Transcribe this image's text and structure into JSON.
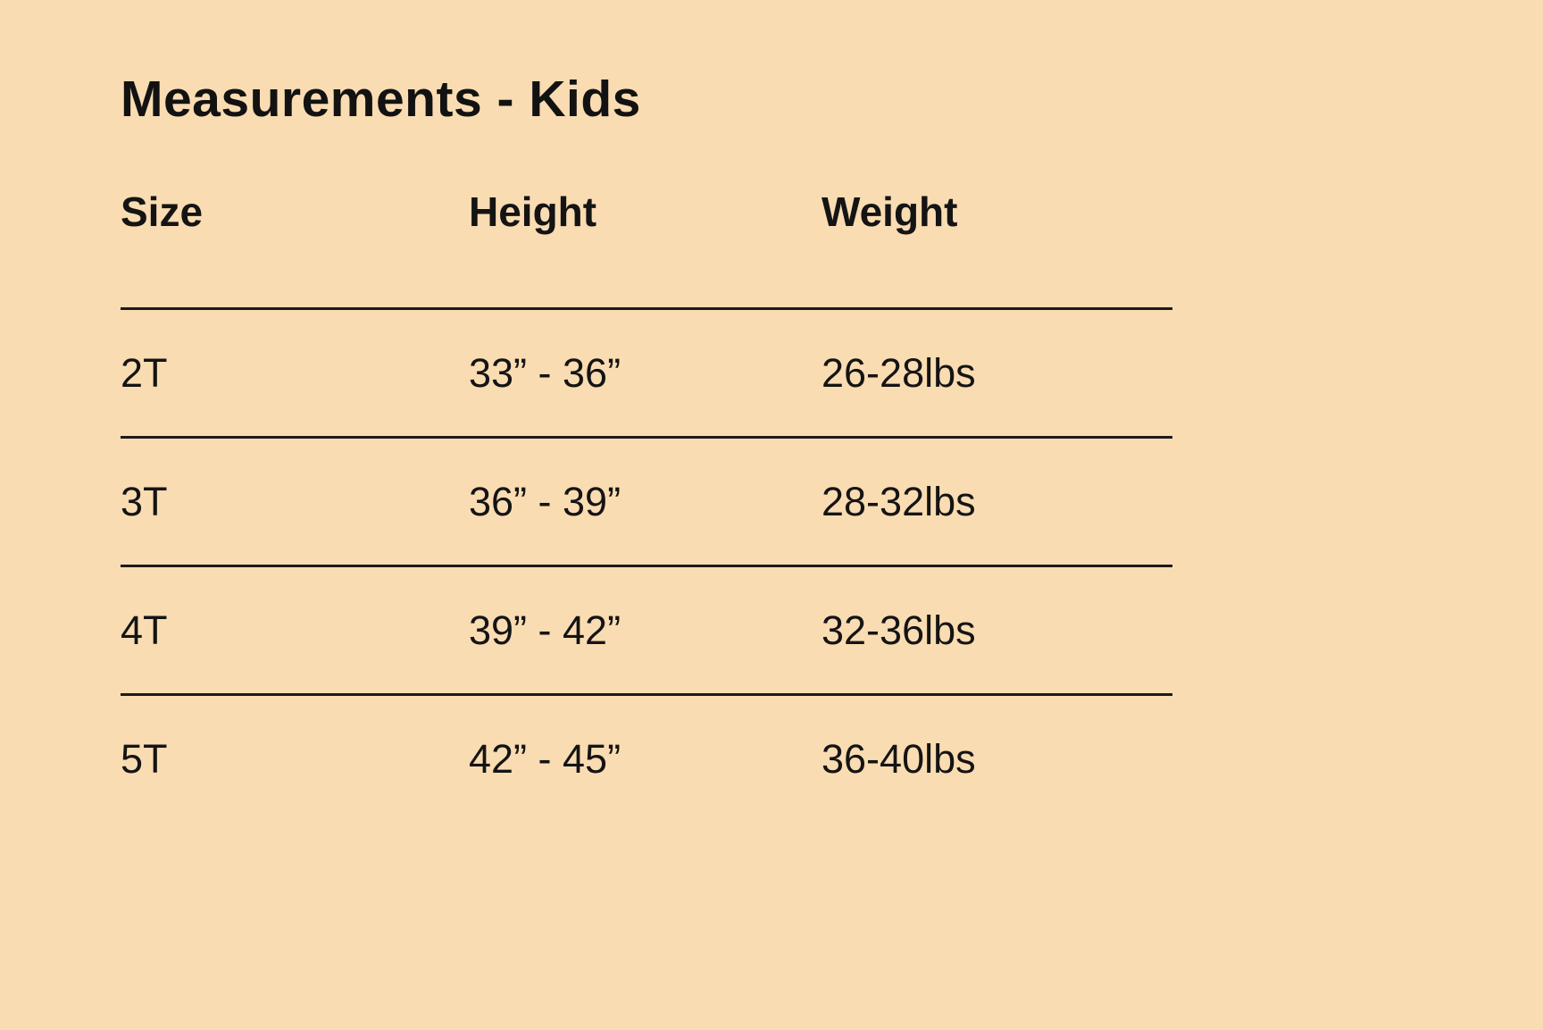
{
  "page": {
    "background_color": "#fadcb2",
    "text_color": "#141414",
    "divider_color": "#1a1a1a"
  },
  "chart_data": {
    "type": "table",
    "title": "Measurements - Kids",
    "columns": [
      "Size",
      "Height",
      "Weight"
    ],
    "rows": [
      [
        "2T",
        "33” - 36”",
        "26-28lbs"
      ],
      [
        "3T",
        "36” - 39”",
        "28-32lbs"
      ],
      [
        "4T",
        "39” - 42”",
        "32-36lbs"
      ],
      [
        "5T",
        "42” - 45”",
        "36-40lbs"
      ]
    ]
  }
}
